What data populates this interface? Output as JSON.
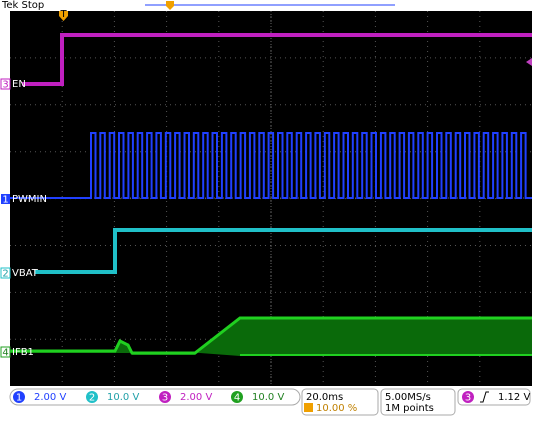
{
  "header": {
    "title": "Tek Stop"
  },
  "channels": [
    {
      "number": "3",
      "label": "EN"
    },
    {
      "number": "1",
      "label": "PWMIN"
    },
    {
      "number": "2",
      "label": "VBAT"
    },
    {
      "number": "4",
      "label": "IFB1"
    }
  ],
  "status_bar": {
    "scales": [
      {
        "number": "1",
        "value": "2.00 V"
      },
      {
        "number": "2",
        "value": "10.0 V"
      },
      {
        "number": "3",
        "value": "2.00 V"
      },
      {
        "number": "4",
        "value": "10.0 V"
      }
    ],
    "timebase": "20.0ms",
    "trigger_position": "10.00 %",
    "sample_rate": "5.00MS/s",
    "record_length": "1M points",
    "trigger_source": "3",
    "trigger_level": "1.12 V"
  }
}
